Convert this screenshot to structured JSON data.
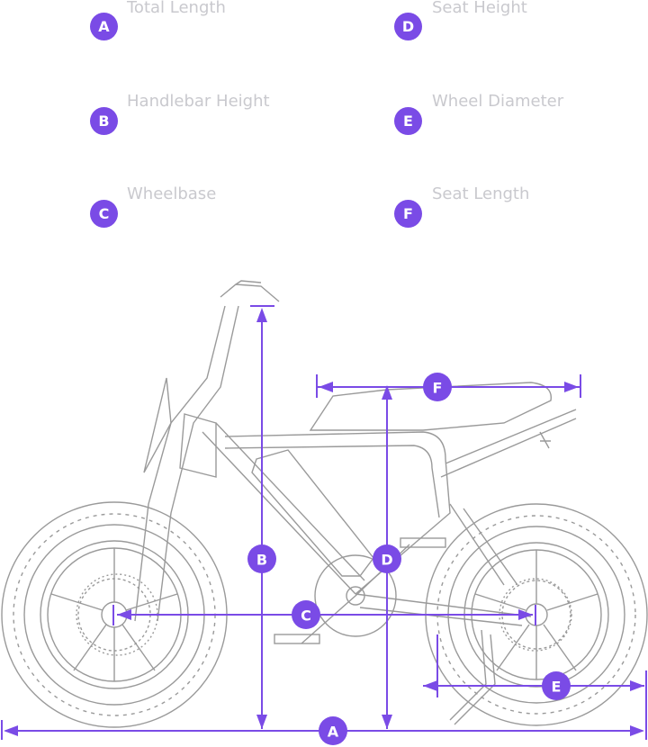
{
  "accent_color": "#7a4be6",
  "label_color": "#c9c9ce",
  "legend": [
    {
      "letter": "A",
      "label": "Total Length"
    },
    {
      "letter": "B",
      "label": "Handlebar Height"
    },
    {
      "letter": "C",
      "label": "Wheelbase"
    },
    {
      "letter": "D",
      "label": "Seat Height"
    },
    {
      "letter": "E",
      "label": "Wheel Diameter"
    },
    {
      "letter": "F",
      "label": "Seat Length"
    }
  ],
  "diagram": {
    "subject": "e-bike line drawing",
    "dimension_markers": [
      "A",
      "B",
      "C",
      "D",
      "E",
      "F"
    ]
  }
}
